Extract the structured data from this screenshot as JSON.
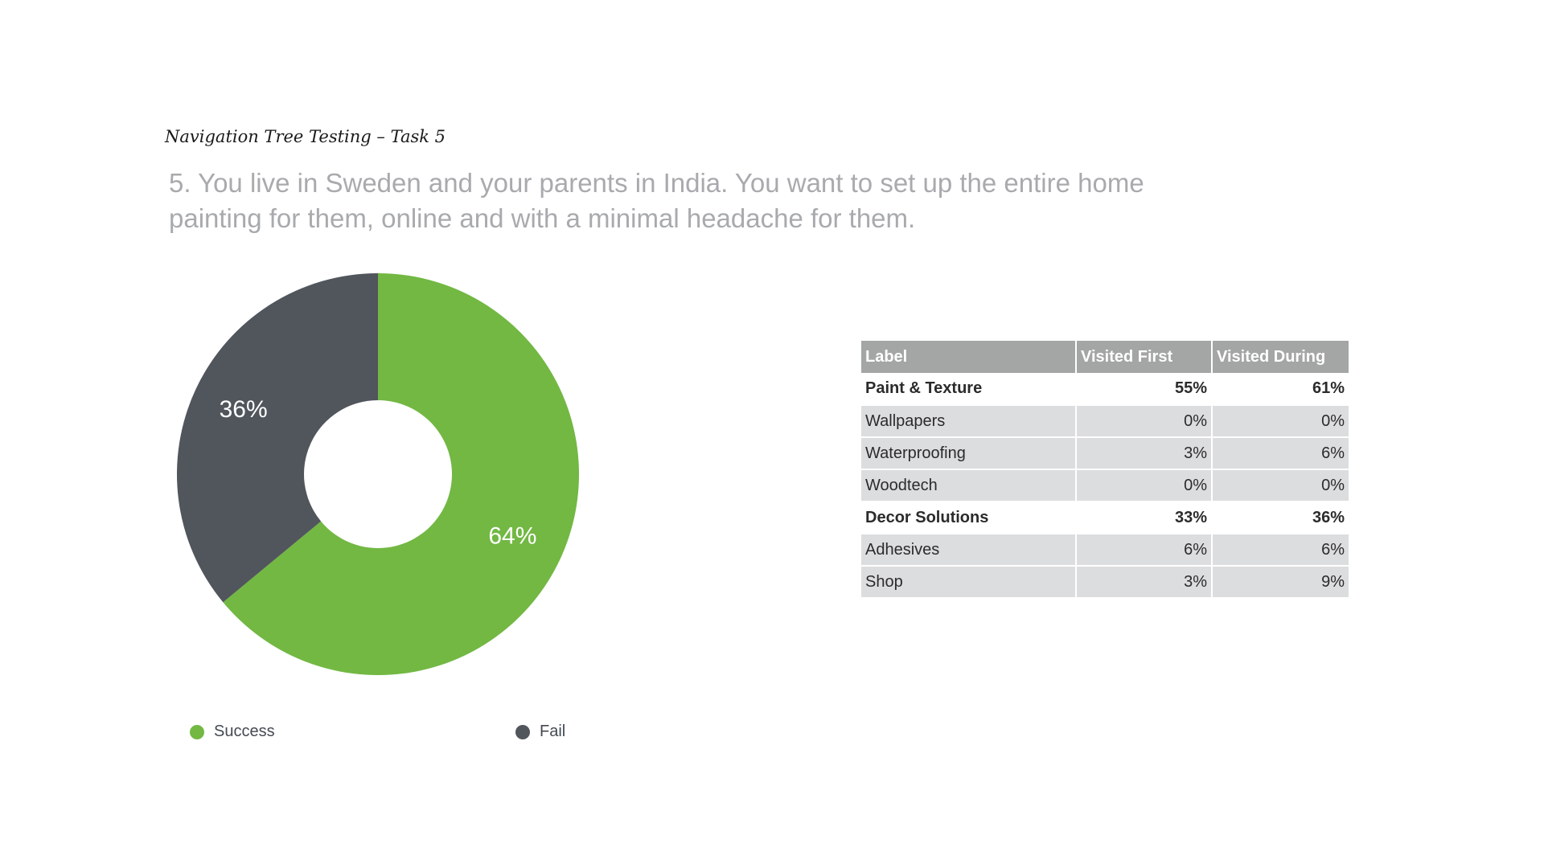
{
  "header": {
    "kicker": "Navigation Tree Testing – Task 5",
    "question": "5. You live in Sweden and your parents in India. You want to set up the entire home painting for them, online and with a minimal headache for them."
  },
  "chart_data": {
    "type": "pie",
    "donut": true,
    "labels": [
      "Success",
      "Fail"
    ],
    "values": [
      64,
      36
    ],
    "slice_labels": [
      "64%",
      "36%"
    ],
    "colors": [
      "#72b843",
      "#51555c"
    ],
    "legend": "bottom",
    "title": ""
  },
  "legend": [
    {
      "label": "Success",
      "color": "#72b843"
    },
    {
      "label": "Fail",
      "color": "#51555c"
    }
  ],
  "table": {
    "headers": [
      "Label",
      "Visited First",
      "Visited During"
    ],
    "rows": [
      {
        "label": "Paint & Texture",
        "first": "55%",
        "during": "61%",
        "group": true
      },
      {
        "label": "Wallpapers",
        "first": "0%",
        "during": "0%",
        "group": false
      },
      {
        "label": "Waterproofing",
        "first": "3%",
        "during": "6%",
        "group": false
      },
      {
        "label": "Woodtech",
        "first": "0%",
        "during": "0%",
        "group": false
      },
      {
        "label": "Decor Solutions",
        "first": "33%",
        "during": "36%",
        "group": true
      },
      {
        "label": "Adhesives",
        "first": "6%",
        "during": "6%",
        "group": false
      },
      {
        "label": "Shop",
        "first": "3%",
        "during": "9%",
        "group": false
      }
    ]
  }
}
